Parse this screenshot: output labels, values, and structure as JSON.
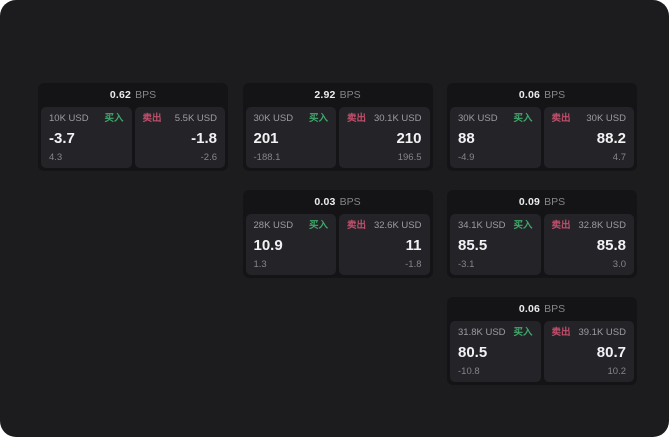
{
  "labels": {
    "bps_unit": "BPS",
    "buy": "买入",
    "sell": "卖出"
  },
  "colors": {
    "page_background": "#1c1c1e",
    "card_background": "#141416",
    "panel_background": "#242428",
    "buy_green": "#3fa86a",
    "sell_red": "#c04f6b",
    "text_primary": "#f2f2f4",
    "text_muted": "#9c9ca1"
  },
  "cards": [
    {
      "grid": {
        "row": 1,
        "col": 1
      },
      "bps": "0.62",
      "buy": {
        "amount": "10K USD",
        "value": "-3.7",
        "delta": "4.3"
      },
      "sell": {
        "amount": "5.5K USD",
        "value": "-1.8",
        "delta": "-2.6"
      }
    },
    {
      "grid": {
        "row": 1,
        "col": 2
      },
      "bps": "2.92",
      "buy": {
        "amount": "30K USD",
        "value": "201",
        "delta": "-188.1"
      },
      "sell": {
        "amount": "30.1K USD",
        "value": "210",
        "delta": "196.5"
      }
    },
    {
      "grid": {
        "row": 1,
        "col": 3
      },
      "bps": "0.06",
      "buy": {
        "amount": "30K USD",
        "value": "88",
        "delta": "-4.9"
      },
      "sell": {
        "amount": "30K USD",
        "value": "88.2",
        "delta": "4.7"
      }
    },
    {
      "grid": {
        "row": 2,
        "col": 2
      },
      "bps": "0.03",
      "buy": {
        "amount": "28K USD",
        "value": "10.9",
        "delta": "1.3"
      },
      "sell": {
        "amount": "32.6K USD",
        "value": "11",
        "delta": "-1.8"
      }
    },
    {
      "grid": {
        "row": 2,
        "col": 3
      },
      "bps": "0.09",
      "buy": {
        "amount": "34.1K USD",
        "value": "85.5",
        "delta": "-3.1"
      },
      "sell": {
        "amount": "32.8K USD",
        "value": "85.8",
        "delta": "3.0"
      }
    },
    {
      "grid": {
        "row": 3,
        "col": 3
      },
      "bps": "0.06",
      "buy": {
        "amount": "31.8K USD",
        "value": "80.5",
        "delta": "-10.8"
      },
      "sell": {
        "amount": "39.1K USD",
        "value": "80.7",
        "delta": "10.2"
      }
    }
  ]
}
